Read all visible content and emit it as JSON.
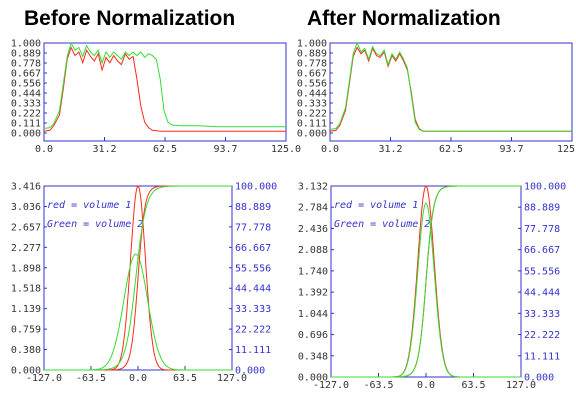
{
  "titles": {
    "left": "Before Normalization",
    "right": "After Normalization"
  },
  "colors": {
    "red": "#ff2a1a",
    "green": "#33dd33",
    "axis": "#3333cc",
    "dark": "#333333"
  },
  "chart_data": [
    {
      "type": "line",
      "title": "Before Normalization",
      "xlim": [
        0,
        125
      ],
      "ylim": [
        0,
        1
      ],
      "xticks": [
        "0.0",
        "31.2",
        "62.5",
        "93.7",
        "125.0"
      ],
      "yticks": [
        "0.000",
        "0.111",
        "0.222",
        "0.333",
        "0.444",
        "0.556",
        "0.667",
        "0.778",
        "0.889",
        "1.000"
      ],
      "series": [
        {
          "color": "#ff2a1a",
          "x": [
            0,
            3,
            5,
            8,
            10,
            12,
            14,
            16,
            18,
            20,
            22,
            24,
            26,
            28,
            30,
            32,
            34,
            36,
            38,
            40,
            42,
            44,
            46,
            48,
            50,
            52,
            54,
            56,
            60,
            70,
            80,
            90,
            100,
            110,
            125
          ],
          "y": [
            0.02,
            0.03,
            0.08,
            0.2,
            0.5,
            0.82,
            0.95,
            0.86,
            0.9,
            0.78,
            0.92,
            0.85,
            0.8,
            0.88,
            0.7,
            0.84,
            0.78,
            0.86,
            0.8,
            0.76,
            0.88,
            0.82,
            0.85,
            0.6,
            0.3,
            0.12,
            0.06,
            0.03,
            0.02,
            0.02,
            0.02,
            0.02,
            0.02,
            0.02,
            0.02
          ]
        },
        {
          "color": "#33dd33",
          "x": [
            0,
            3,
            5,
            8,
            10,
            12,
            14,
            16,
            18,
            20,
            22,
            24,
            26,
            28,
            30,
            32,
            34,
            36,
            38,
            40,
            42,
            44,
            46,
            48,
            50,
            52,
            54,
            56,
            58,
            60,
            62,
            64,
            66,
            70,
            80,
            90,
            100,
            110,
            125
          ],
          "y": [
            0.05,
            0.06,
            0.1,
            0.25,
            0.55,
            0.85,
            1.0,
            0.92,
            0.95,
            0.85,
            0.97,
            0.9,
            0.86,
            0.92,
            0.78,
            0.9,
            0.84,
            0.9,
            0.86,
            0.82,
            0.9,
            0.86,
            0.9,
            0.86,
            0.9,
            0.84,
            0.88,
            0.86,
            0.82,
            0.6,
            0.25,
            0.12,
            0.09,
            0.08,
            0.08,
            0.07,
            0.07,
            0.07,
            0.07
          ]
        }
      ]
    },
    {
      "type": "line",
      "title": "After Normalization",
      "xlim": [
        0,
        125
      ],
      "ylim": [
        0,
        1
      ],
      "xticks": [
        "0.0",
        "31.2",
        "62.5",
        "93.7",
        "125.0"
      ],
      "yticks": [
        "0.000",
        "0.111",
        "0.222",
        "0.333",
        "0.444",
        "0.556",
        "0.667",
        "0.778",
        "0.889",
        "1.000"
      ],
      "series": [
        {
          "color": "#ff2a1a",
          "x": [
            0,
            3,
            5,
            8,
            10,
            12,
            14,
            16,
            18,
            20,
            22,
            24,
            26,
            28,
            30,
            32,
            34,
            36,
            38,
            40,
            42,
            44,
            46,
            48,
            50,
            55,
            60,
            70,
            80,
            90,
            100,
            110,
            125
          ],
          "y": [
            0.02,
            0.03,
            0.08,
            0.25,
            0.55,
            0.85,
            0.95,
            0.88,
            0.92,
            0.8,
            0.94,
            0.86,
            0.84,
            0.9,
            0.74,
            0.86,
            0.8,
            0.88,
            0.8,
            0.7,
            0.45,
            0.15,
            0.05,
            0.02,
            0.02,
            0.02,
            0.02,
            0.02,
            0.02,
            0.02,
            0.02,
            0.02,
            0.02
          ]
        },
        {
          "color": "#33dd33",
          "x": [
            0,
            3,
            5,
            8,
            10,
            12,
            14,
            16,
            18,
            20,
            22,
            24,
            26,
            28,
            30,
            32,
            34,
            36,
            38,
            40,
            42,
            44,
            46,
            48,
            50,
            55,
            60,
            70,
            80,
            90,
            100,
            110,
            125
          ],
          "y": [
            0.04,
            0.05,
            0.1,
            0.28,
            0.58,
            0.88,
            1.0,
            0.9,
            0.94,
            0.82,
            0.96,
            0.88,
            0.86,
            0.92,
            0.76,
            0.88,
            0.82,
            0.9,
            0.82,
            0.72,
            0.42,
            0.12,
            0.04,
            0.02,
            0.02,
            0.02,
            0.02,
            0.02,
            0.02,
            0.02,
            0.02,
            0.02,
            0.02
          ]
        }
      ]
    },
    {
      "type": "line",
      "title": "Before Normalization",
      "xlim": [
        -127,
        127
      ],
      "ylim": [
        0,
        3.416
      ],
      "y2lim": [
        0,
        100
      ],
      "xticks": [
        "-127.0",
        "-63.5",
        "0.0",
        "63.5",
        "127.0"
      ],
      "yticks": [
        "0.000",
        "0.380",
        "0.759",
        "1.139",
        "1.518",
        "1.898",
        "2.277",
        "2.657",
        "3.036",
        "3.416"
      ],
      "y2ticks": [
        "0.000",
        "11.111",
        "22.222",
        "33.333",
        "44.444",
        "55.556",
        "66.667",
        "77.778",
        "88.889",
        "100.000"
      ],
      "annotations": [
        "red = volume 1",
        "Green = volume 2"
      ],
      "series": [
        {
          "color": "#ff2a1a",
          "axis": "left",
          "peak_x": 0,
          "peak_y": 3.416,
          "sigma": 10
        },
        {
          "color": "#33dd33",
          "axis": "left",
          "peak_x": -3,
          "peak_y": 2.15,
          "sigma": 16
        },
        {
          "color": "#ff2a1a",
          "axis": "right",
          "center_x": 0,
          "scale": 12
        },
        {
          "color": "#33dd33",
          "axis": "right",
          "center_x": -3,
          "scale": 18
        }
      ]
    },
    {
      "type": "line",
      "title": "After Normalization",
      "xlim": [
        -127,
        127
      ],
      "ylim": [
        0,
        3.132
      ],
      "y2lim": [
        0,
        100
      ],
      "xticks": [
        "-127.0",
        "-63.5",
        "0.0",
        "63.5",
        "127.0"
      ],
      "yticks": [
        "0.000",
        "0.348",
        "0.696",
        "1.044",
        "1.392",
        "1.740",
        "2.088",
        "2.436",
        "2.784",
        "3.132"
      ],
      "y2ticks": [
        "0.000",
        "11.111",
        "22.222",
        "33.333",
        "44.444",
        "55.556",
        "66.667",
        "77.778",
        "88.889",
        "100.000"
      ],
      "annotations": [
        "red = volume 1",
        "Green = volume 2"
      ],
      "series": [
        {
          "color": "#ff2a1a",
          "axis": "left",
          "peak_x": 0,
          "peak_y": 3.132,
          "sigma": 11
        },
        {
          "color": "#33dd33",
          "axis": "left",
          "peak_x": 0,
          "peak_y": 2.85,
          "sigma": 11
        },
        {
          "color": "#ff2a1a",
          "axis": "right",
          "center_x": 0,
          "scale": 13
        },
        {
          "color": "#33dd33",
          "axis": "right",
          "center_x": 0,
          "scale": 13
        }
      ]
    }
  ]
}
